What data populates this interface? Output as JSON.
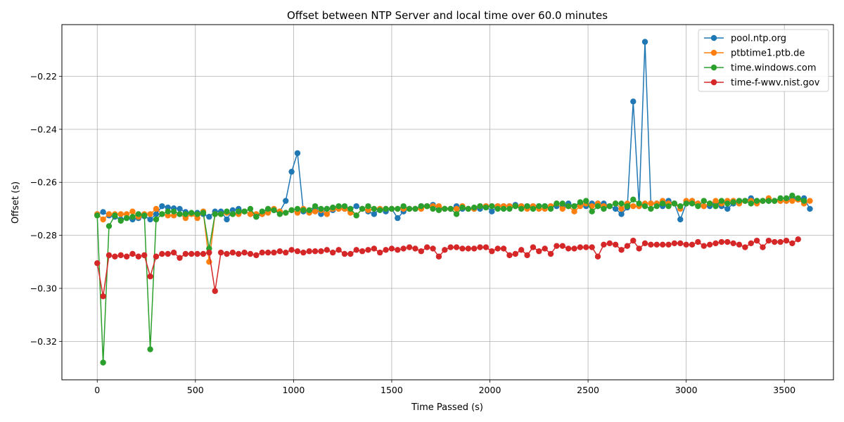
{
  "chart_data": {
    "type": "line",
    "title": "Offset between NTP Server and local time over 60.0 minutes",
    "xlabel": "Time Passed (s)",
    "ylabel": "Offset (s)",
    "xlim": [
      -180,
      3750
    ],
    "ylim": [
      -0.3345,
      -0.2005
    ],
    "xticks": [
      0,
      500,
      1000,
      1500,
      2000,
      2500,
      3000,
      3500
    ],
    "xtick_labels": [
      "0",
      "500",
      "1000",
      "1500",
      "2000",
      "2500",
      "3000",
      "3500"
    ],
    "yticks": [
      -0.32,
      -0.3,
      -0.28,
      -0.26,
      -0.24,
      -0.22
    ],
    "ytick_labels": [
      "−0.32",
      "−0.30",
      "−0.28",
      "−0.26",
      "−0.24",
      "−0.22"
    ],
    "grid": true,
    "legend_position": "top-right",
    "sample_interval_s": 30,
    "series": [
      {
        "name": "pool.ntp.org",
        "color": "#1f77b4",
        "values": [
          -0.272,
          -0.2712,
          -0.2725,
          -0.273,
          -0.274,
          -0.2735,
          -0.274,
          -0.2735,
          -0.2728,
          -0.274,
          -0.272,
          -0.269,
          -0.2695,
          -0.2698,
          -0.27,
          -0.2712,
          -0.2718,
          -0.2715,
          -0.272,
          -0.273,
          -0.271,
          -0.271,
          -0.274,
          -0.2705,
          -0.27,
          -0.271,
          -0.272,
          -0.273,
          -0.272,
          -0.2705,
          -0.2705,
          -0.271,
          -0.267,
          -0.256,
          -0.249,
          -0.271,
          -0.271,
          -0.27,
          -0.272,
          -0.27,
          -0.2705,
          -0.2695,
          -0.27,
          -0.27,
          -0.269,
          -0.27,
          -0.271,
          -0.272,
          -0.27,
          -0.271,
          -0.27,
          -0.2735,
          -0.271,
          -0.27,
          -0.27,
          -0.269,
          -0.269,
          -0.2685,
          -0.27,
          -0.27,
          -0.27,
          -0.269,
          -0.27,
          -0.27,
          -0.27,
          -0.27,
          -0.269,
          -0.271,
          -0.269,
          -0.269,
          -0.269,
          -0.2685,
          -0.269,
          -0.269,
          -0.269,
          -0.269,
          -0.269,
          -0.269,
          -0.269,
          -0.269,
          -0.268,
          -0.269,
          -0.268,
          -0.269,
          -0.268,
          -0.268,
          -0.268,
          -0.269,
          -0.27,
          -0.272,
          -0.2695,
          -0.2295,
          -0.269,
          -0.207,
          -0.268,
          -0.268,
          -0.269,
          -0.267,
          -0.268,
          -0.274,
          -0.268,
          -0.267,
          -0.268,
          -0.269,
          -0.269,
          -0.268,
          -0.269,
          -0.27,
          -0.268,
          -0.267,
          -0.267,
          -0.266,
          -0.267,
          -0.267,
          -0.267,
          -0.267,
          -0.267,
          -0.267,
          -0.266,
          -0.2665,
          -0.266,
          -0.27
        ]
      },
      {
        "name": "ptbtime1.ptb.de",
        "color": "#ff7f0e",
        "values": [
          -0.272,
          -0.274,
          -0.272,
          -0.272,
          -0.272,
          -0.272,
          -0.271,
          -0.273,
          -0.272,
          -0.272,
          -0.27,
          -0.272,
          -0.2725,
          -0.2725,
          -0.272,
          -0.2735,
          -0.272,
          -0.2735,
          -0.271,
          -0.29,
          -0.272,
          -0.272,
          -0.2715,
          -0.272,
          -0.272,
          -0.271,
          -0.272,
          -0.272,
          -0.272,
          -0.2715,
          -0.27,
          -0.271,
          -0.2715,
          -0.2705,
          -0.2715,
          -0.27,
          -0.2715,
          -0.271,
          -0.2705,
          -0.272,
          -0.27,
          -0.27,
          -0.27,
          -0.2715,
          -0.2725,
          -0.27,
          -0.2705,
          -0.27,
          -0.27,
          -0.27,
          -0.27,
          -0.27,
          -0.27,
          -0.27,
          -0.27,
          -0.27,
          -0.269,
          -0.269,
          -0.269,
          -0.27,
          -0.27,
          -0.27,
          -0.269,
          -0.27,
          -0.27,
          -0.269,
          -0.269,
          -0.269,
          -0.269,
          -0.269,
          -0.269,
          -0.269,
          -0.269,
          -0.27,
          -0.269,
          -0.27,
          -0.27,
          -0.269,
          -0.268,
          -0.27,
          -0.269,
          -0.271,
          -0.269,
          -0.268,
          -0.269,
          -0.268,
          -0.269,
          -0.269,
          -0.268,
          -0.27,
          -0.268,
          -0.269,
          -0.269,
          -0.268,
          -0.268,
          -0.268,
          -0.267,
          -0.268,
          -0.268,
          -0.27,
          -0.267,
          -0.267,
          -0.268,
          -0.269,
          -0.268,
          -0.267,
          -0.268,
          -0.267,
          -0.267,
          -0.268,
          -0.267,
          -0.267,
          -0.268,
          -0.267,
          -0.266,
          -0.267,
          -0.267,
          -0.267,
          -0.267,
          -0.2665,
          -0.268,
          -0.267
        ]
      },
      {
        "name": "time.windows.com",
        "color": "#2ca02c",
        "values": [
          -0.2725,
          -0.328,
          -0.2765,
          -0.2725,
          -0.2745,
          -0.2735,
          -0.273,
          -0.272,
          -0.2725,
          -0.323,
          -0.274,
          -0.272,
          -0.271,
          -0.271,
          -0.272,
          -0.272,
          -0.2715,
          -0.272,
          -0.2715,
          -0.285,
          -0.272,
          -0.272,
          -0.271,
          -0.272,
          -0.271,
          -0.271,
          -0.27,
          -0.273,
          -0.271,
          -0.27,
          -0.2705,
          -0.272,
          -0.2715,
          -0.2705,
          -0.27,
          -0.2705,
          -0.2705,
          -0.269,
          -0.27,
          -0.27,
          -0.2695,
          -0.269,
          -0.269,
          -0.27,
          -0.2725,
          -0.27,
          -0.269,
          -0.27,
          -0.2705,
          -0.27,
          -0.27,
          -0.27,
          -0.269,
          -0.27,
          -0.27,
          -0.269,
          -0.269,
          -0.27,
          -0.2705,
          -0.27,
          -0.27,
          -0.272,
          -0.2695,
          -0.27,
          -0.2695,
          -0.269,
          -0.2695,
          -0.269,
          -0.27,
          -0.27,
          -0.27,
          -0.269,
          -0.27,
          -0.269,
          -0.27,
          -0.269,
          -0.269,
          -0.27,
          -0.268,
          -0.268,
          -0.269,
          -0.269,
          -0.2675,
          -0.267,
          -0.271,
          -0.269,
          -0.27,
          -0.269,
          -0.268,
          -0.268,
          -0.269,
          -0.2665,
          -0.268,
          -0.269,
          -0.27,
          -0.269,
          -0.268,
          -0.269,
          -0.268,
          -0.269,
          -0.268,
          -0.268,
          -0.269,
          -0.267,
          -0.268,
          -0.269,
          -0.267,
          -0.268,
          -0.2675,
          -0.267,
          -0.267,
          -0.268,
          -0.267,
          -0.267,
          -0.267,
          -0.267,
          -0.266,
          -0.266,
          -0.265,
          -0.266,
          -0.267
        ]
      },
      {
        "name": "time-f-wwv.nist.gov",
        "color": "#d62728",
        "values": [
          -0.2905,
          -0.303,
          -0.2875,
          -0.288,
          -0.2875,
          -0.288,
          -0.287,
          -0.288,
          -0.2875,
          -0.2955,
          -0.288,
          -0.287,
          -0.287,
          -0.2865,
          -0.2885,
          -0.287,
          -0.287,
          -0.287,
          -0.287,
          -0.2865,
          -0.301,
          -0.2865,
          -0.287,
          -0.2865,
          -0.287,
          -0.2865,
          -0.287,
          -0.2875,
          -0.2865,
          -0.2865,
          -0.2865,
          -0.286,
          -0.2865,
          -0.2855,
          -0.286,
          -0.2865,
          -0.286,
          -0.286,
          -0.286,
          -0.2855,
          -0.2865,
          -0.2855,
          -0.287,
          -0.287,
          -0.2855,
          -0.286,
          -0.2855,
          -0.285,
          -0.2865,
          -0.2855,
          -0.285,
          -0.2855,
          -0.285,
          -0.2845,
          -0.285,
          -0.286,
          -0.2845,
          -0.285,
          -0.288,
          -0.2855,
          -0.2845,
          -0.2845,
          -0.285,
          -0.285,
          -0.285,
          -0.2845,
          -0.2845,
          -0.286,
          -0.285,
          -0.285,
          -0.2875,
          -0.287,
          -0.2855,
          -0.2875,
          -0.2845,
          -0.286,
          -0.285,
          -0.287,
          -0.284,
          -0.284,
          -0.285,
          -0.285,
          -0.2845,
          -0.2845,
          -0.2845,
          -0.288,
          -0.2835,
          -0.283,
          -0.2835,
          -0.2855,
          -0.284,
          -0.282,
          -0.285,
          -0.283,
          -0.2835,
          -0.2835,
          -0.2835,
          -0.2835,
          -0.283,
          -0.283,
          -0.2835,
          -0.2835,
          -0.2825,
          -0.284,
          -0.2835,
          -0.283,
          -0.2825,
          -0.2825,
          -0.283,
          -0.2835,
          -0.2845,
          -0.283,
          -0.282,
          -0.2845,
          -0.282,
          -0.2825,
          -0.2825,
          -0.282,
          -0.283,
          -0.2815
        ]
      }
    ]
  }
}
